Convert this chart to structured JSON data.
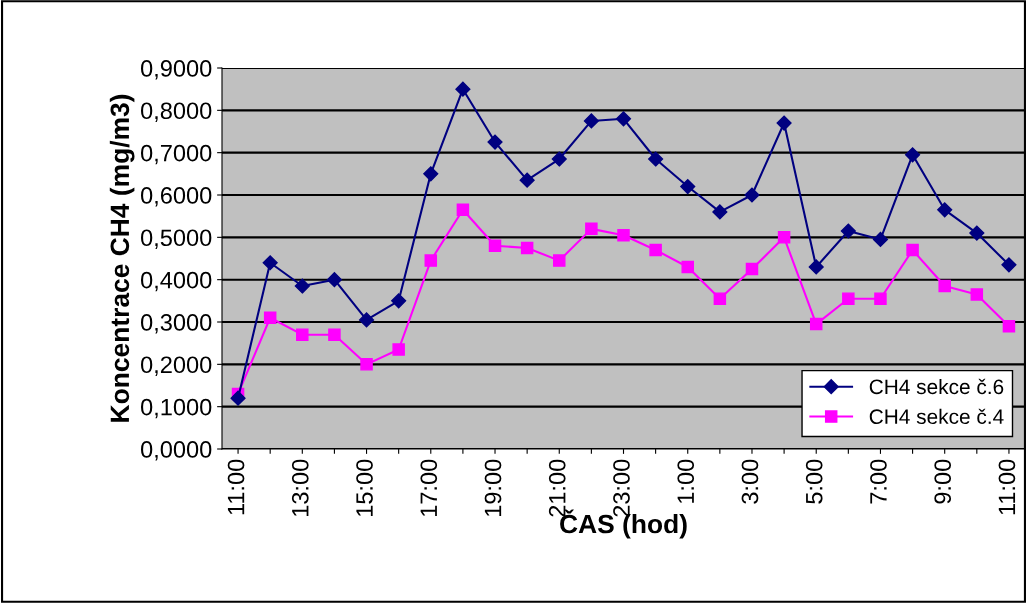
{
  "chart_data": {
    "type": "line",
    "ylabel": "Koncentrace CH4 (mg/m3)",
    "xlabel": "ČAS (hod)",
    "categories": [
      "11:00",
      null,
      "13:00",
      null,
      "15:00",
      null,
      "17:00",
      null,
      "19:00",
      null,
      "21:00",
      null,
      "23:00",
      null,
      "1:00",
      null,
      "3:00",
      null,
      "5:00",
      null,
      "7:00",
      null,
      "9:00",
      null,
      "11:00"
    ],
    "series": [
      {
        "name": "CH4 sekce č.6",
        "color": "#000080",
        "marker": "diamond",
        "values": [
          0.12,
          0.44,
          0.385,
          0.4,
          0.305,
          0.35,
          0.65,
          0.85,
          0.725,
          0.635,
          0.685,
          0.775,
          0.78,
          0.685,
          0.62,
          0.56,
          0.6,
          0.77,
          0.43,
          0.515,
          0.495,
          0.695,
          0.565,
          0.51,
          0.435
        ]
      },
      {
        "name": "CH4 sekce č.4",
        "color": "#ff00ff",
        "marker": "square",
        "values": [
          0.13,
          0.31,
          0.27,
          0.27,
          0.2,
          0.235,
          0.445,
          0.565,
          0.48,
          0.475,
          0.445,
          0.52,
          0.505,
          0.47,
          0.43,
          0.355,
          0.425,
          0.5,
          0.295,
          0.355,
          0.355,
          0.47,
          0.385,
          0.365,
          0.29
        ]
      }
    ],
    "ylim": [
      0,
      0.9
    ],
    "yticks": [
      {
        "value": 0,
        "label": "0,0000"
      },
      {
        "value": 0.1,
        "label": "0,1000"
      },
      {
        "value": 0.2,
        "label": "0,2000"
      },
      {
        "value": 0.3,
        "label": "0,3000"
      },
      {
        "value": 0.4,
        "label": "0,4000"
      },
      {
        "value": 0.5,
        "label": "0,5000"
      },
      {
        "value": 0.6,
        "label": "0,6000"
      },
      {
        "value": 0.7,
        "label": "0,7000"
      },
      {
        "value": 0.8,
        "label": "0,8000"
      },
      {
        "value": 0.9,
        "label": "0,9000"
      }
    ],
    "grid": "y",
    "legend": "lower right",
    "line_style": "solid"
  }
}
